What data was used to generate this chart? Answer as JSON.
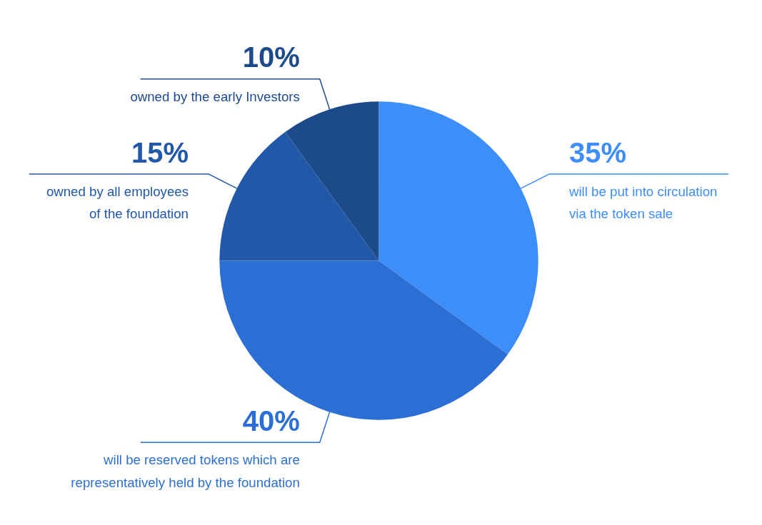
{
  "chart_data": {
    "type": "pie",
    "categories": [
      "will be put into circulation\nvia the token sale",
      "will be reserved tokens which are\nrepresentatively held by the foundation",
      "owned by all employees\nof the foundation",
      "owned by the early Investors"
    ],
    "values": [
      35,
      40,
      15,
      10
    ],
    "value_labels": [
      "35%",
      "40%",
      "15%",
      "10%"
    ],
    "colors": [
      "#3d8ef8",
      "#2b6fd4",
      "#2158a8",
      "#1c4a8a"
    ]
  }
}
